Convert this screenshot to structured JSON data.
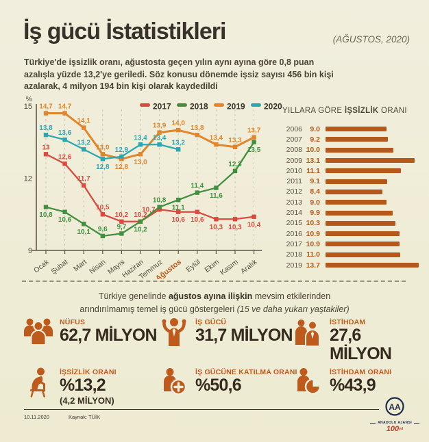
{
  "header": {
    "title": "İş gücü İstatistikleri",
    "date_note": "(AĞUSTOS, 2020)",
    "subtitle": "Türkiye'de işsizlik oranı, ağustosta geçen yılın aynı ayına göre 0,8 puan azalışla yüzde 13,2'ye geriledi. Söz konusu dönemde işsiz sayısı 456 bin kişi azalarak, 4 milyon 194 bin kişi olarak kaydedildi"
  },
  "chart_data": [
    {
      "type": "line",
      "y_unit": "%",
      "ylim": [
        9,
        15
      ],
      "yticks": [
        15,
        12,
        9
      ],
      "grid": "vertical-dashed",
      "legend_position": "top-right-inside",
      "x": [
        "Ocak",
        "Şubat",
        "Mart",
        "Nisan",
        "Mayıs",
        "Haziran",
        "Temmuz",
        "Ağustos",
        "Eylül",
        "Ekim",
        "Kasım",
        "Aralık"
      ],
      "highlight_x": "Ağustos",
      "series": [
        {
          "name": "2017",
          "color": "#d94b3f",
          "values": [
            13,
            12.6,
            11.7,
            10.5,
            10.2,
            10.2,
            10.7,
            10.6,
            10.6,
            10.3,
            10.3,
            10.4
          ],
          "labels": [
            "13",
            "12,6",
            "11,7",
            "10,5",
            "10,2",
            "10,2",
            "10,7",
            "10,6",
            "10,6",
            "10,3",
            "10,3",
            "10,4"
          ]
        },
        {
          "name": "2018",
          "color": "#41903f",
          "values": [
            10.8,
            10.6,
            10.1,
            9.6,
            9.7,
            10.2,
            10.8,
            11.1,
            11.4,
            11.6,
            12.3,
            13.5
          ],
          "labels": [
            "10,8",
            "10,6",
            "10,1",
            "9,6",
            "9,7",
            "10,2",
            "10,8",
            "11,1",
            "11,4",
            "11,6",
            "12,3",
            "13,5"
          ]
        },
        {
          "name": "2019",
          "color": "#e0862c",
          "values": [
            14.7,
            14.7,
            14.1,
            13,
            12.8,
            13,
            13.9,
            14,
            13.8,
            13.4,
            13.3,
            13.7
          ],
          "labels": [
            "14,7",
            "14,7",
            "14,1",
            "13,0",
            "12,8",
            "13,0",
            "13,9",
            "14,0",
            "13,8",
            "13,4",
            "13,3",
            "13,7"
          ]
        },
        {
          "name": "2020",
          "color": "#2ba7b4",
          "values": [
            13.8,
            13.6,
            13.2,
            12.8,
            12.9,
            13.4,
            13.4,
            13.2
          ],
          "labels": [
            "13,8",
            "13,6",
            "13,2",
            "12,8",
            "12,9",
            "13,4",
            "13,4",
            "13,2"
          ]
        }
      ]
    },
    {
      "type": "bar",
      "orientation": "horizontal",
      "title_pre": "YILLARA GÖRE ",
      "title_bold": "İŞSİZLİK",
      "title_post": " ORANI",
      "categories": [
        "2006",
        "2007",
        "2008",
        "2009",
        "2010",
        "2011",
        "2012",
        "2013",
        "2014",
        "2015",
        "2016",
        "2017",
        "2018",
        "2019"
      ],
      "values": [
        9.0,
        9.2,
        10.0,
        13.1,
        11.1,
        9.1,
        8.4,
        9.0,
        9.9,
        10.3,
        10.9,
        10.9,
        11.0,
        13.7
      ],
      "color": "#b4581c",
      "xlim": [
        0,
        14
      ]
    }
  ],
  "note": {
    "line1_pre": "Türkiye genelinde ",
    "line1_bold": "ağustos ayına ilişkin",
    "line1_post": " mevsim etkilerinden",
    "line2_pre": "arındırılmamış temel iş gücü göstergeleri ",
    "line2_italic": "(15 ve daha yukarı yaştakiler)"
  },
  "stats": [
    {
      "icon": "population-icon",
      "label": "NÜFUS",
      "value": "62,7 MİLYON"
    },
    {
      "icon": "labor-force-icon",
      "label": "İŞ GÜCÜ",
      "value": "31,7 MİLYON"
    },
    {
      "icon": "employment-icon",
      "label": "İSTİHDAM",
      "value": "27,6 MİLYON"
    },
    {
      "icon": "unemployment-rate-icon",
      "label": "İŞSİZLİK ORANI",
      "value": "%13,2",
      "sub": "(4,2 MİLYON)"
    },
    {
      "icon": "participation-rate-icon",
      "label": "İŞ GÜCÜNE KATILMA ORANI",
      "value": "%50,6"
    },
    {
      "icon": "employment-rate-icon",
      "label": "İSTİHDAM ORANI",
      "value": "%43,9"
    }
  ],
  "footer": {
    "date": "10.11.2020",
    "source": "Kaynak: TÜİK",
    "agency_initials": "AA",
    "agency_name": "ANADOLU AJANSI",
    "anniversary": "100",
    "anniversary_suffix": "yıl"
  },
  "colors": {
    "background": "#f0eedb",
    "ink": "#3a3329",
    "rust_accent": "#b4581c",
    "line_2017": "#d94b3f",
    "line_2018": "#41903f",
    "line_2019": "#e0862c",
    "line_2020": "#2ba7b4",
    "aa_navy": "#1d2c4e",
    "aa_red": "#c23a2e"
  }
}
